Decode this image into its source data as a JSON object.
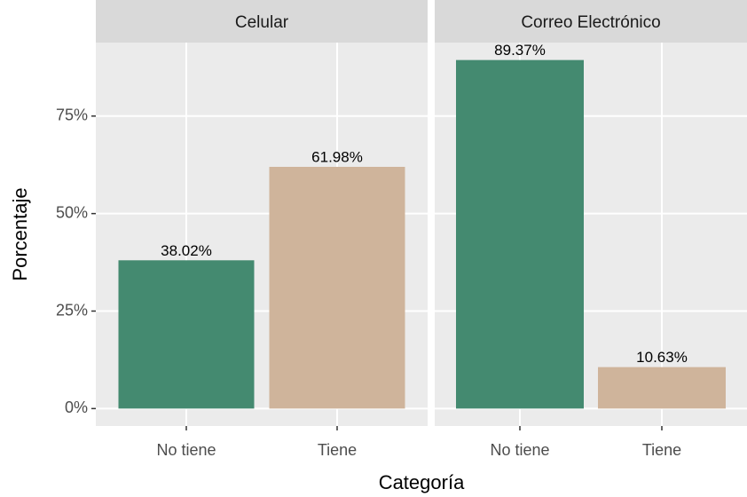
{
  "chart_data": [
    {
      "type": "bar",
      "title": "Celular",
      "y_label": "Porcentaje",
      "x_label": "Categoría",
      "categories": [
        "No tiene",
        "Tiene"
      ],
      "values": [
        38.02,
        61.98
      ],
      "value_labels": [
        "38.02%",
        "61.98%"
      ],
      "colors": [
        "#448a70",
        "#cfb49b"
      ],
      "ylim": [
        -4.47,
        93.84
      ],
      "yticks": [
        {
          "value": 0,
          "label": "0%"
        },
        {
          "value": 25,
          "label": "25%"
        },
        {
          "value": 50,
          "label": "50%"
        },
        {
          "value": 75,
          "label": "75%"
        }
      ],
      "grid": true
    },
    {
      "type": "bar",
      "title": "Correo Electrónico",
      "categories": [
        "No tiene",
        "Tiene"
      ],
      "values": [
        89.37,
        10.63
      ],
      "value_labels": [
        "89.37%",
        "10.63%"
      ],
      "colors": [
        "#448a70",
        "#cfb49b"
      ],
      "ylim": [
        -4.47,
        93.84
      ],
      "yticks": [
        {
          "value": 0,
          "label": "0%"
        },
        {
          "value": 25,
          "label": "25%"
        },
        {
          "value": 50,
          "label": "50%"
        },
        {
          "value": 75,
          "label": "75%"
        }
      ],
      "grid": true
    }
  ]
}
